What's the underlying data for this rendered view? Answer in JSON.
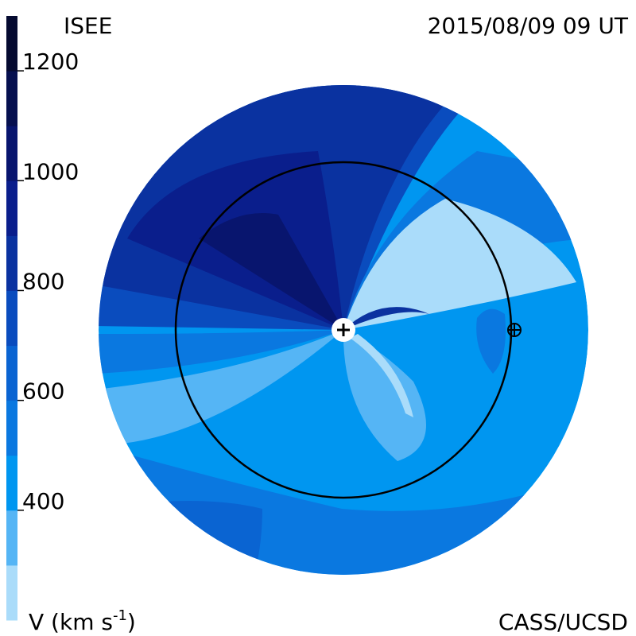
{
  "header": {
    "left": "ISEE",
    "right": "2015/08/09 09 UT"
  },
  "footer": {
    "left": {
      "text": "V (km s",
      "sup": "-1",
      "end": ")"
    },
    "right": "CASS/UCSD"
  },
  "colorbar": {
    "range": [
      200,
      1300
    ],
    "levels": [
      200,
      300,
      400,
      500,
      600,
      700,
      800,
      900,
      1000,
      1100,
      1200,
      1300
    ],
    "colors": [
      "#aadcfa",
      "#55b5f5",
      "#0096f0",
      "#0a78e0",
      "#0a64d2",
      "#0a4cbe",
      "#0a32a0",
      "#0a1e8c",
      "#08156e",
      "#06104f",
      "#050a30"
    ],
    "ticks": [
      400,
      600,
      800,
      1000,
      1200
    ]
  }
}
